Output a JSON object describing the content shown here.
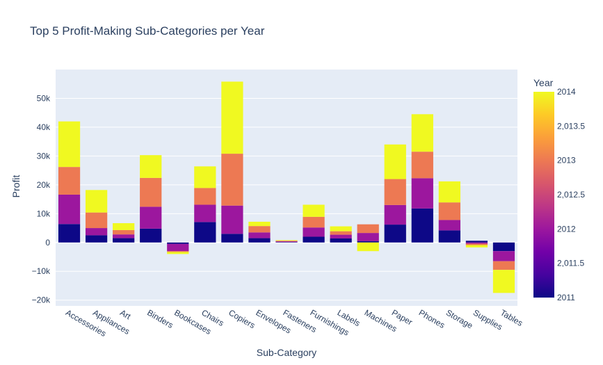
{
  "chart_data": {
    "type": "bar",
    "barmode": "relative",
    "title": "Top 5 Profit-Making Sub-Categories per Year",
    "xlabel": "Sub-Category",
    "ylabel": "Profit",
    "ylim": [
      -22000,
      60000
    ],
    "y_ticks": [
      -20000,
      -10000,
      0,
      10000,
      20000,
      30000,
      40000,
      50000
    ],
    "y_tick_labels": [
      "−20k",
      "−10k",
      "0",
      "10k",
      "20k",
      "30k",
      "40k",
      "50k"
    ],
    "grid": true,
    "categories": [
      "Accessories",
      "Appliances",
      "Art",
      "Binders",
      "Bookcases",
      "Chairs",
      "Copiers",
      "Envelopes",
      "Fasteners",
      "Furnishings",
      "Labels",
      "Machines",
      "Paper",
      "Phones",
      "Storage",
      "Supplies",
      "Tables"
    ],
    "series": [
      {
        "year": 2011,
        "color": "#0d0887",
        "values": [
          6400,
          2500,
          1500,
          4800,
          -500,
          7100,
          3000,
          1500,
          150,
          2000,
          1400,
          500,
          6200,
          11800,
          4200,
          600,
          -3000
        ]
      },
      {
        "year": 2012,
        "color": "#9c179e",
        "values": [
          10200,
          2500,
          1300,
          7600,
          -2500,
          6000,
          9800,
          2000,
          250,
          3200,
          1300,
          2800,
          6800,
          10500,
          3600,
          -400,
          -3500
        ]
      },
      {
        "year": 2013,
        "color": "#ed7953",
        "values": [
          9600,
          5400,
          1500,
          10000,
          -300,
          5800,
          18000,
          2200,
          200,
          3700,
          1200,
          3000,
          9000,
          9200,
          6100,
          -500,
          -3000
        ]
      },
      {
        "year": 2014,
        "color": "#f0f921",
        "values": [
          15800,
          7800,
          2400,
          7900,
          -700,
          7500,
          25000,
          1500,
          200,
          4200,
          1700,
          -3000,
          12000,
          13000,
          7300,
          -800,
          -8000
        ]
      }
    ],
    "colorbar": {
      "title": "Year",
      "tick_labels": [
        "2014",
        "2,013.5",
        "2013",
        "2,012.5",
        "2012",
        "2,011.5",
        "2011"
      ],
      "colors": [
        "#0d0887",
        "#46039f",
        "#7201a8",
        "#9c179e",
        "#bd3786",
        "#d8576b",
        "#ed7953",
        "#fb9f3a",
        "#fdca26",
        "#f0f921"
      ]
    }
  }
}
